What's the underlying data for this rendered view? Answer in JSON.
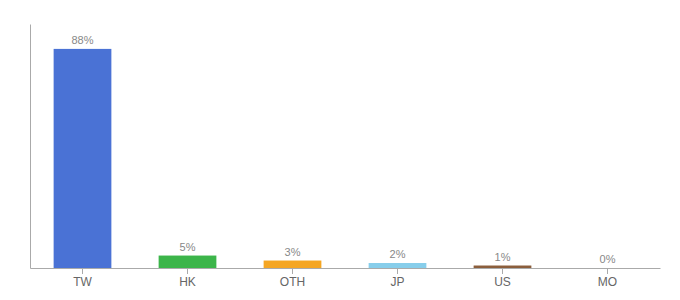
{
  "chart_data": {
    "type": "bar",
    "categories": [
      "TW",
      "HK",
      "OTH",
      "JP",
      "US",
      "MO"
    ],
    "values": [
      88,
      5,
      3,
      2,
      1,
      0
    ],
    "value_labels": [
      "88%",
      "5%",
      "3%",
      "2%",
      "1%",
      "0%"
    ],
    "colors": [
      "#4A72D5",
      "#3CB54A",
      "#F5A623",
      "#87CEEB",
      "#8B5E3C",
      "#999999"
    ],
    "ylim": [
      0,
      98
    ],
    "yticks": [],
    "grid": false,
    "data_labels": true,
    "tick_labels": "x"
  }
}
